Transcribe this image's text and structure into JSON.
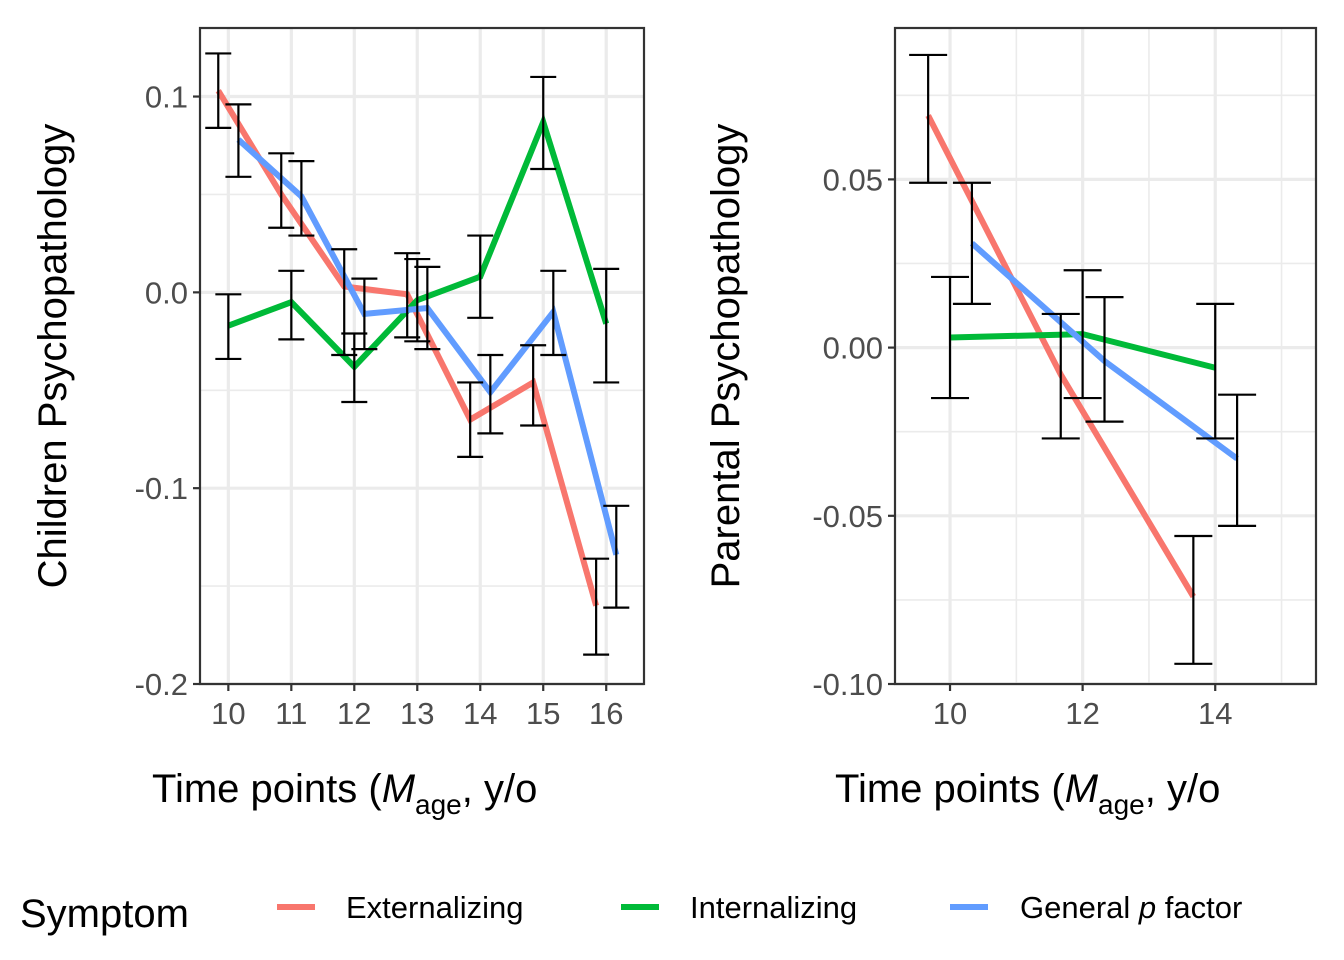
{
  "colors": {
    "Externalizing": "#F8766D",
    "Internalizing": "#00BA38",
    "General": "#619CFF",
    "grid": "#EBEBEB",
    "frame": "#333333",
    "tick_text": "#4D4D4D"
  },
  "legend": {
    "title": "Symptom",
    "items": [
      {
        "key": "Externalizing",
        "label": "Externalizing",
        "italic_part": ""
      },
      {
        "key": "Internalizing",
        "label": "Internalizing",
        "italic_part": ""
      },
      {
        "key": "General",
        "label_prefix": "General ",
        "italic_part": "p",
        "label_suffix": " factor"
      }
    ],
    "position": "bottom"
  },
  "chart_data": [
    {
      "type": "line",
      "panel": "left",
      "title": "",
      "xlabel": "Time points (M_age, y/o",
      "xlabel_parts": {
        "prefix": "Time points (",
        "italic": "M",
        "subscript": "age",
        "suffix": ", y/o"
      },
      "ylabel": "Children Psychopathology",
      "xlim": [
        9.55,
        16.6
      ],
      "ylim": [
        -0.2,
        0.135
      ],
      "x_ticks": [
        10,
        11,
        12,
        13,
        14,
        15,
        16
      ],
      "x_tick_labels": [
        "10",
        "11",
        "12",
        "13",
        "14",
        "15",
        "16"
      ],
      "y_ticks": [
        0.1,
        0.0,
        -0.1,
        -0.2
      ],
      "y_tick_labels": [
        "0.1",
        "0.0",
        "-0.1",
        "-0.2"
      ],
      "y_minor": [
        0.05,
        -0.05,
        -0.15
      ],
      "dodge": 0.16,
      "grid": true,
      "series": [
        {
          "name": "Externalizing",
          "x": [
            10,
            11,
            12,
            13,
            14,
            15,
            16
          ],
          "y": [
            0.103,
            0.05,
            0.003,
            -0.001,
            -0.065,
            -0.046,
            -0.16
          ],
          "lower": [
            0.084,
            0.033,
            -0.032,
            -0.023,
            -0.084,
            -0.068,
            -0.185
          ],
          "upper": [
            0.122,
            0.071,
            0.022,
            0.02,
            -0.046,
            -0.027,
            -0.136
          ]
        },
        {
          "name": "Internalizing",
          "x": [
            10,
            11,
            12,
            13,
            14,
            15,
            16
          ],
          "y": [
            -0.017,
            -0.005,
            -0.038,
            -0.004,
            0.008,
            0.087,
            -0.016
          ],
          "lower": [
            -0.034,
            -0.024,
            -0.056,
            -0.025,
            -0.013,
            0.063,
            -0.046
          ],
          "upper": [
            -0.001,
            0.011,
            -0.021,
            0.017,
            0.029,
            0.11,
            0.012
          ]
        },
        {
          "name": "General",
          "x": [
            10,
            11,
            12,
            13,
            14,
            15,
            16
          ],
          "y": [
            0.078,
            0.049,
            -0.011,
            -0.008,
            -0.051,
            -0.01,
            -0.134
          ],
          "lower": [
            0.059,
            0.029,
            -0.029,
            -0.029,
            -0.072,
            -0.032,
            -0.161
          ],
          "upper": [
            0.096,
            0.067,
            0.007,
            0.013,
            -0.032,
            0.011,
            -0.109
          ]
        }
      ]
    },
    {
      "type": "line",
      "panel": "right",
      "title": "",
      "xlabel": "Time points (M_age, y/o",
      "xlabel_parts": {
        "prefix": "Time points (",
        "italic": "M",
        "subscript": "age",
        "suffix": ", y/o"
      },
      "ylabel": "Parental Psychopathology",
      "xlim": [
        9.17,
        15.52
      ],
      "ylim": [
        -0.1,
        0.095
      ],
      "x_ticks": [
        10,
        12,
        14
      ],
      "x_tick_labels": [
        "10",
        "12",
        "14"
      ],
      "y_ticks": [
        0.05,
        0.0,
        -0.05,
        -0.1
      ],
      "y_tick_labels": [
        "0.05",
        "0.00",
        "-0.05",
        "-0.10"
      ],
      "y_minor": [
        0.075,
        0.025,
        -0.025,
        -0.075
      ],
      "x_minor": [
        11,
        13,
        15
      ],
      "dodge": 0.33,
      "grid": true,
      "series": [
        {
          "name": "Externalizing",
          "x": [
            10,
            12,
            14
          ],
          "y": [
            0.069,
            -0.008,
            -0.074
          ],
          "lower": [
            0.049,
            -0.027,
            -0.094
          ],
          "upper": [
            0.087,
            0.01,
            -0.056
          ]
        },
        {
          "name": "Internalizing",
          "x": [
            10,
            12,
            14
          ],
          "y": [
            0.003,
            0.004,
            -0.006
          ],
          "lower": [
            -0.015,
            -0.015,
            -0.027
          ],
          "upper": [
            0.021,
            0.023,
            0.013
          ]
        },
        {
          "name": "General",
          "x": [
            10,
            12,
            14
          ],
          "y": [
            0.031,
            -0.004,
            -0.033
          ],
          "lower": [
            0.013,
            -0.022,
            -0.053
          ],
          "upper": [
            0.049,
            0.015,
            -0.014
          ]
        }
      ]
    }
  ]
}
